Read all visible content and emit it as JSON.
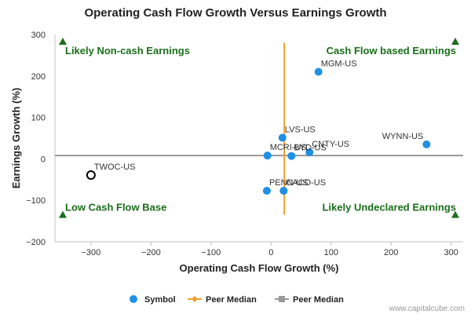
{
  "chart_data": {
    "type": "scatter",
    "title": "Operating Cash Flow Growth Versus Earnings Growth",
    "xlabel": "Operating Cash Flow Growth (%)",
    "ylabel": "Earnings Growth (%)",
    "xlim": [
      -360,
      320
    ],
    "ylim": [
      -200,
      300
    ],
    "x_ticks": [
      -300,
      -200,
      -100,
      0,
      100,
      200,
      300
    ],
    "y_ticks": [
      -200,
      -100,
      0,
      100,
      200,
      300
    ],
    "x_tick_labels": [
      "−300",
      "−200",
      "−100",
      "0",
      "100",
      "200",
      "300"
    ],
    "y_tick_labels": [
      "−200",
      "−100",
      "0",
      "100",
      "200",
      "300"
    ],
    "grid": false,
    "legend_position": "bottom",
    "series": [
      {
        "name": "Symbol",
        "color": "#1e90e6",
        "points": [
          {
            "label": "MGM-US",
            "x": 79,
            "y": 210
          },
          {
            "label": "LVS-US",
            "x": 19,
            "y": 51
          },
          {
            "label": "WYNN-US",
            "x": 259,
            "y": 35
          },
          {
            "label": "CNTY-US",
            "x": 64,
            "y": 16
          },
          {
            "label": "BYD-US",
            "x": 34,
            "y": 7
          },
          {
            "label": "MCRI-US",
            "x": -6,
            "y": 8
          },
          {
            "label": "PENN-US",
            "x": -7,
            "y": -77
          },
          {
            "label": "CACO-US",
            "x": 21,
            "y": -77
          }
        ]
      }
    ],
    "highlight": {
      "label": "TWOC-US",
      "x": -300,
      "y": -39
    },
    "peer_median": {
      "x": 22,
      "y": 8,
      "x_color": "#f0a030",
      "y_color": "#999999"
    },
    "legend": [
      {
        "label": "Symbol",
        "type": "circle",
        "color": "#1e90e6"
      },
      {
        "label": "Peer Median",
        "type": "line-diamond",
        "color": "#f0a030"
      },
      {
        "label": "Peer Median",
        "type": "line-square",
        "color": "#999999"
      }
    ],
    "quadrants": {
      "top_left": "Likely Non-cash Earnings",
      "top_right": "Cash Flow based Earnings",
      "bottom_left": "Low Cash Flow Base",
      "bottom_right": "Likely Undeclared Earnings"
    },
    "quadrant_color": "#1b6e1b"
  },
  "credit": "www.capitalcube.com"
}
